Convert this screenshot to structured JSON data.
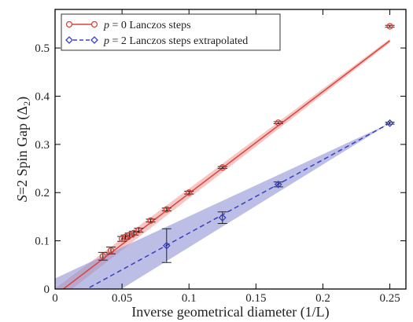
{
  "chart_data": {
    "type": "scatter",
    "xlabel": "Inverse geometrical diameter (1/L)",
    "ylabel": "S=2 Spin Gap (Δ₂)",
    "ylabel_parts": {
      "s": "S",
      "eq": "=2 Spin Gap (Δ",
      "sub": "2",
      "close": ")"
    },
    "xlim": [
      0,
      0.262
    ],
    "ylim": [
      0,
      0.58
    ],
    "x_ticks": [
      0,
      0.05,
      0.1,
      0.15,
      0.2,
      0.25
    ],
    "x_tick_labels": [
      "0",
      "0.05",
      "0.1",
      "0.15",
      "0.2",
      "0.25"
    ],
    "y_ticks": [
      0,
      0.1,
      0.2,
      0.3,
      0.4,
      0.5
    ],
    "y_tick_labels": [
      "0",
      "0.1",
      "0.2",
      "0.3",
      "0.4",
      "0.5"
    ],
    "grid": false,
    "legend_position": "top-left",
    "series": [
      {
        "name": "p = 0 Lanczos steps",
        "legend_parts": {
          "p": "p",
          "rest": " = 0 Lanczos steps"
        },
        "color": "#e0413a",
        "marker": "circle",
        "x": [
          0.0357,
          0.0417,
          0.05,
          0.0526,
          0.0556,
          0.0588,
          0.0625,
          0.0714,
          0.0833,
          0.1,
          0.125,
          0.1667,
          0.25
        ],
        "y": [
          0.068,
          0.08,
          0.104,
          0.108,
          0.112,
          0.116,
          0.122,
          0.142,
          0.165,
          0.2,
          0.252,
          0.345,
          0.545
        ],
        "errors": [
          0.008,
          0.007,
          0.005,
          0.004,
          0.004,
          0.004,
          0.004,
          0.003,
          0.003,
          0.003,
          0.002,
          0.002,
          0.002
        ],
        "fit_line": {
          "x": [
            0,
            0.25
          ],
          "y": [
            -0.013,
            0.515
          ]
        },
        "fit_band": {
          "x": [
            0,
            0.25
          ],
          "upper": [
            0.001,
            0.519
          ],
          "lower": [
            -0.027,
            0.511
          ]
        }
      },
      {
        "name": "p = 2 Lanczos steps extrapolated",
        "legend_parts": {
          "p": "p",
          "rest": " = 2 Lanczos steps extrapolated"
        },
        "color": "#3b3fc4",
        "band_color": "#8f93d3",
        "marker": "diamond",
        "x": [
          0.0833,
          0.125,
          0.1667,
          0.25
        ],
        "y": [
          0.09,
          0.148,
          0.217,
          0.344
        ],
        "errors": [
          0.035,
          0.012,
          0.005,
          0.002
        ],
        "fit_line": {
          "x": [
            0,
            0.25
          ],
          "y": [
            -0.036,
            0.344
          ]
        },
        "fit_band": {
          "x": [
            0,
            0.25
          ],
          "upper": [
            0.022,
            0.344
          ],
          "lower": [
            -0.085,
            0.344
          ]
        }
      }
    ]
  }
}
